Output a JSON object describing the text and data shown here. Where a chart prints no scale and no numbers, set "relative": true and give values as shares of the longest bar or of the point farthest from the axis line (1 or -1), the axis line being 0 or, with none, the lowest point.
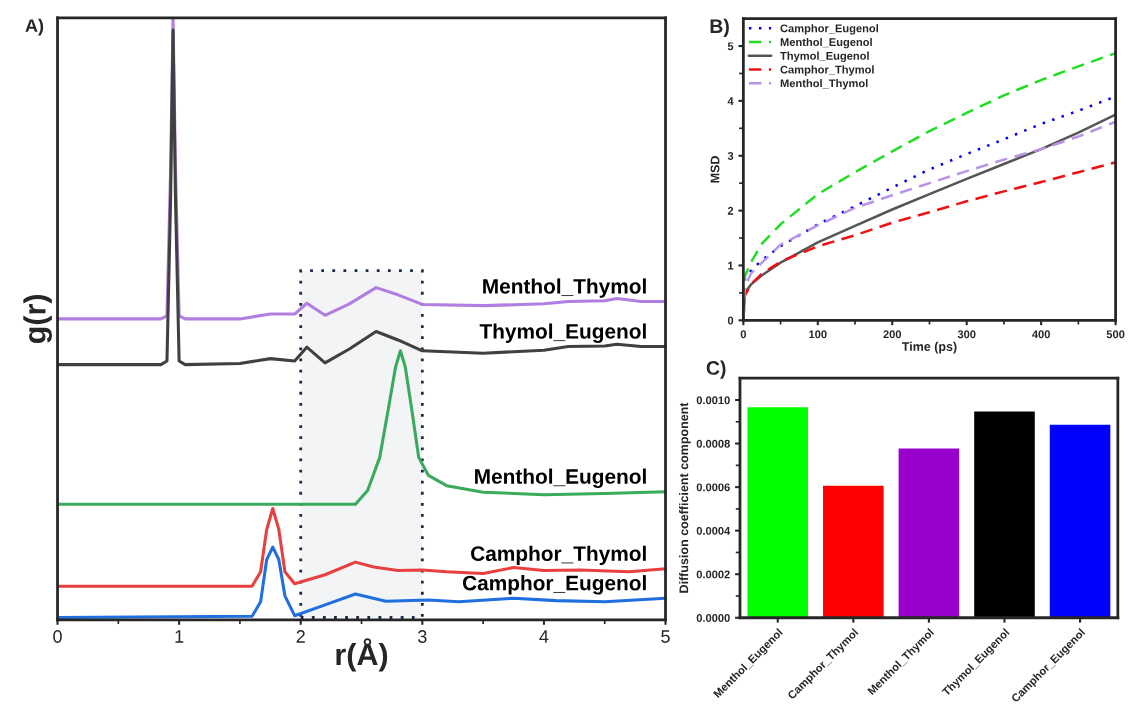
{
  "chart_data": [
    {
      "type": "line",
      "title": "A)",
      "xlabel": "r(Å)",
      "ylabel": "g(r)",
      "relative": true,
      "tick_labels": "x",
      "legend": false,
      "grid": false,
      "xlim": [
        0,
        5
      ],
      "xticks": [
        0,
        {
          "value": 0.5,
          "label": null
        },
        1,
        {
          "value": 1.5,
          "label": null
        },
        2,
        {
          "value": 2.5,
          "label": null
        },
        3,
        {
          "value": 3.5,
          "label": null
        },
        4,
        {
          "value": 4.5,
          "label": null
        },
        5
      ],
      "bands": [
        {
          "axis": "x",
          "from": 2,
          "to": 3,
          "color": "#1a2a4a"
        }
      ],
      "series": [
        {
          "name": "Menthol_Thymol",
          "color": "#b07ee0",
          "x": [
            0,
            0.85,
            0.9,
            0.93,
            0.95,
            0.97,
            1.0,
            1.05,
            1.5,
            1.75,
            1.95,
            2.05,
            2.2,
            2.4,
            2.62,
            2.8,
            3.0,
            3.5,
            4.0,
            4.2,
            4.5,
            4.6,
            4.8,
            5.0
          ],
          "values": [
            0.5,
            0.5,
            0.505,
            0.75,
            1.0,
            0.75,
            0.505,
            0.5,
            0.5,
            0.508,
            0.508,
            0.526,
            0.506,
            0.525,
            0.552,
            0.54,
            0.524,
            0.522,
            0.525,
            0.529,
            0.53,
            0.534,
            0.529,
            0.529
          ]
        },
        {
          "name": "Thymol_Eugenol",
          "color": "#404040",
          "x": [
            0,
            0.85,
            0.9,
            0.93,
            0.95,
            0.97,
            1.0,
            1.05,
            1.5,
            1.75,
            1.95,
            2.05,
            2.2,
            2.4,
            2.62,
            2.8,
            3.0,
            3.5,
            4.0,
            4.2,
            4.5,
            4.6,
            4.8,
            5.0
          ],
          "values": [
            0.424,
            0.424,
            0.43,
            0.7,
            0.98,
            0.7,
            0.43,
            0.424,
            0.426,
            0.434,
            0.43,
            0.453,
            0.427,
            0.45,
            0.479,
            0.465,
            0.447,
            0.443,
            0.448,
            0.454,
            0.455,
            0.458,
            0.454,
            0.454
          ]
        },
        {
          "name": "Menthol_Eugenol",
          "color": "#3aaa5c",
          "x": [
            0,
            2.45,
            2.55,
            2.65,
            2.72,
            2.78,
            2.82,
            2.86,
            2.92,
            2.97,
            3.05,
            3.2,
            3.5,
            4.0,
            4.5,
            5.0
          ],
          "values": [
            0.192,
            0.192,
            0.215,
            0.27,
            0.35,
            0.42,
            0.447,
            0.42,
            0.34,
            0.27,
            0.24,
            0.223,
            0.212,
            0.208,
            0.21,
            0.213
          ]
        },
        {
          "name": "Camphor_Thymol",
          "color": "#e8403f",
          "x": [
            0,
            1.6,
            1.67,
            1.72,
            1.77,
            1.82,
            1.87,
            1.95,
            2.2,
            2.45,
            2.6,
            2.8,
            3.0,
            3.2,
            3.5,
            3.75,
            4.0,
            4.3,
            4.7,
            5.0
          ],
          "values": [
            0.056,
            0.056,
            0.08,
            0.15,
            0.185,
            0.15,
            0.08,
            0.06,
            0.075,
            0.096,
            0.088,
            0.082,
            0.083,
            0.08,
            0.077,
            0.087,
            0.082,
            0.083,
            0.08,
            0.085
          ]
        },
        {
          "name": "Camphor_Eugenol",
          "color": "#1f6fdf",
          "x": [
            0,
            1.6,
            1.67,
            1.72,
            1.77,
            1.82,
            1.87,
            1.95,
            2.2,
            2.45,
            2.7,
            3.05,
            3.3,
            3.75,
            4.1,
            4.5,
            5.0
          ],
          "values": [
            0.004,
            0.006,
            0.03,
            0.1,
            0.121,
            0.1,
            0.04,
            0.007,
            0.025,
            0.043,
            0.031,
            0.033,
            0.03,
            0.036,
            0.032,
            0.03,
            0.036
          ]
        }
      ]
    },
    {
      "type": "line",
      "title": "B)",
      "xlabel": "Time (ps)",
      "ylabel": "MSD",
      "legend": "top left",
      "grid": false,
      "xlim": [
        0,
        500
      ],
      "ylim": [
        0,
        5.5
      ],
      "xticks": [
        0,
        {
          "value": 50,
          "label": null
        },
        100,
        {
          "value": 150,
          "label": null
        },
        200,
        {
          "value": 250,
          "label": null
        },
        300,
        {
          "value": 350,
          "label": null
        },
        400,
        {
          "value": 450,
          "label": null
        },
        500
      ],
      "yticks": [
        0,
        {
          "value": 0.5,
          "label": null
        },
        1,
        {
          "value": 1.5,
          "label": null
        },
        2,
        {
          "value": 2.5,
          "label": null
        },
        3,
        {
          "value": 3.5,
          "label": null
        },
        4,
        {
          "value": 4.5,
          "label": null
        },
        5
      ],
      "x": [
        0,
        2,
        10,
        25,
        50,
        100,
        150,
        200,
        250,
        300,
        350,
        400,
        450,
        500
      ],
      "series": [
        {
          "name": "Camphor_Eugenol",
          "color": "#0000ee",
          "line_style": "dotted",
          "values": [
            0,
            0.75,
            0.9,
            1.1,
            1.35,
            1.75,
            2.08,
            2.42,
            2.75,
            3.03,
            3.3,
            3.58,
            3.82,
            4.08
          ]
        },
        {
          "name": "Menthol_Eugenol",
          "color": "#22dd22",
          "line_style": "dashed",
          "values": [
            0,
            0.8,
            1.05,
            1.4,
            1.75,
            2.3,
            2.7,
            3.08,
            3.45,
            3.78,
            4.1,
            4.38,
            4.63,
            4.87
          ]
        },
        {
          "name": "Thymol_Eugenol",
          "color": "#555555",
          "line_style": "solid",
          "values": [
            0,
            0.5,
            0.65,
            0.82,
            1.05,
            1.42,
            1.72,
            2.02,
            2.3,
            2.58,
            2.85,
            3.12,
            3.42,
            3.75
          ]
        },
        {
          "name": "Camphor_Thymol",
          "color": "#ee1111",
          "line_style": "dashed",
          "values": [
            0,
            0.45,
            0.65,
            0.85,
            1.07,
            1.35,
            1.55,
            1.78,
            1.97,
            2.17,
            2.35,
            2.52,
            2.7,
            2.88
          ]
        },
        {
          "name": "Menthol_Thymol",
          "color": "#b794e8",
          "line_style": "dashed",
          "values": [
            0,
            0.6,
            0.85,
            1.05,
            1.38,
            1.73,
            2.05,
            2.28,
            2.5,
            2.72,
            2.93,
            3.12,
            3.35,
            3.62
          ]
        }
      ]
    },
    {
      "type": "bar",
      "title": "C)",
      "ylabel": "Diffusion coefficient component",
      "grid": false,
      "ylim": [
        0,
        0.0011
      ],
      "yticks": [
        {
          "value": 0,
          "label": "0.0000"
        },
        {
          "value": 0.0001,
          "label": null
        },
        {
          "value": 0.0002,
          "label": "0.0002"
        },
        {
          "value": 0.0003,
          "label": null
        },
        {
          "value": 0.0004,
          "label": "0.0004"
        },
        {
          "value": 0.0005,
          "label": null
        },
        {
          "value": 0.0006,
          "label": "0.0006"
        },
        {
          "value": 0.0007,
          "label": null
        },
        {
          "value": 0.0008,
          "label": "0.0008"
        },
        {
          "value": 0.0009,
          "label": null
        },
        {
          "value": 0.001,
          "label": "0.0010"
        }
      ],
      "categories": [
        "Menthol_Eugenol",
        "Camphor_Thymol",
        "Menthol_Thymol",
        "Thymol_Eugenol",
        "Camphor_Eugenol"
      ],
      "values": [
        0.00097,
        0.00061,
        0.00078,
        0.00095,
        0.00089
      ],
      "colors": [
        "#00ff00",
        "#ff0000",
        "#9900cc",
        "#000000",
        "#0000ff"
      ]
    }
  ]
}
